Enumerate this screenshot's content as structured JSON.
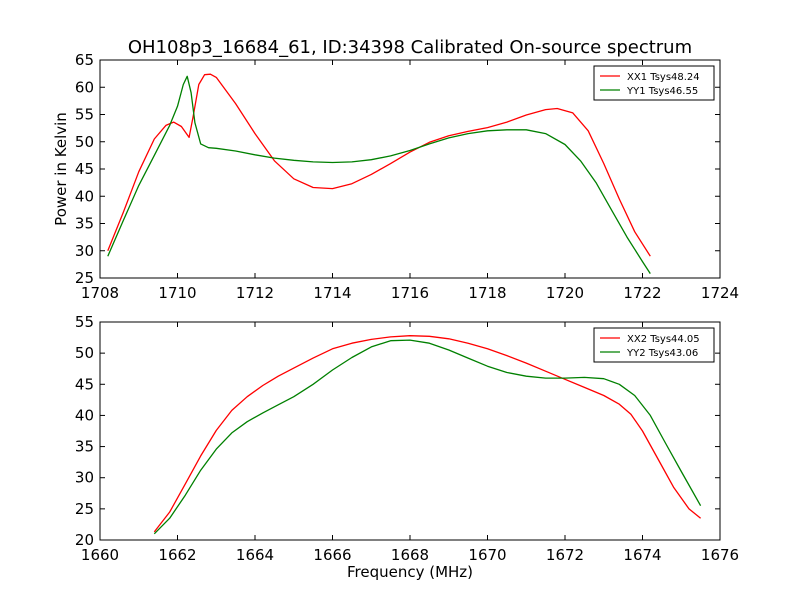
{
  "figure": {
    "title": "OH108p3_16684_61, ID:34398 Calibrated On-source spectrum"
  },
  "colors": {
    "series_red": "#ff0000",
    "series_green": "#008000",
    "frame": "#000000",
    "background": "#ffffff"
  },
  "chart_data": [
    {
      "type": "line",
      "title": "OH108p3_16684_61, ID:34398 Calibrated On-source spectrum",
      "xlabel": "",
      "ylabel": "Power in Kelvin",
      "xlim": [
        1708,
        1724
      ],
      "ylim": [
        25,
        65
      ],
      "xticks": [
        "1708",
        "1710",
        "1712",
        "1714",
        "1716",
        "1718",
        "1720",
        "1722",
        "1724"
      ],
      "yticks": [
        "25",
        "30",
        "35",
        "40",
        "45",
        "50",
        "55",
        "60",
        "65"
      ],
      "grid": false,
      "legend_position": "top-right",
      "series": [
        {
          "name": "XX1 Tsys48.24",
          "color": "#ff0000",
          "x": [
            1708.2,
            1708.6,
            1709.0,
            1709.4,
            1709.7,
            1709.9,
            1710.1,
            1710.3,
            1710.4,
            1710.55,
            1710.7,
            1710.85,
            1711.0,
            1711.5,
            1712.0,
            1712.5,
            1713.0,
            1713.5,
            1714.0,
            1714.5,
            1715.0,
            1715.5,
            1716.0,
            1716.5,
            1717.0,
            1717.5,
            1718.0,
            1718.5,
            1719.0,
            1719.5,
            1719.8,
            1720.2,
            1720.6,
            1721.0,
            1721.4,
            1721.8,
            1722.2
          ],
          "y": [
            30.0,
            37.0,
            44.5,
            50.5,
            53.0,
            53.6,
            52.8,
            50.8,
            54.5,
            60.5,
            62.3,
            62.4,
            61.8,
            57.0,
            51.5,
            46.5,
            43.2,
            41.6,
            41.4,
            42.3,
            44.0,
            46.0,
            48.1,
            49.9,
            51.1,
            51.9,
            52.6,
            53.6,
            54.9,
            55.9,
            56.1,
            55.3,
            52.0,
            46.0,
            39.5,
            33.5,
            29.0
          ]
        },
        {
          "name": "YY1 Tsys46.55",
          "color": "#008000",
          "x": [
            1708.2,
            1708.6,
            1709.0,
            1709.4,
            1709.8,
            1710.0,
            1710.15,
            1710.25,
            1710.35,
            1710.45,
            1710.6,
            1710.8,
            1711.0,
            1711.5,
            1712.0,
            1712.5,
            1713.0,
            1713.5,
            1714.0,
            1714.5,
            1715.0,
            1715.5,
            1716.0,
            1716.5,
            1717.0,
            1717.5,
            1718.0,
            1718.5,
            1719.0,
            1719.5,
            1720.0,
            1720.4,
            1720.8,
            1721.2,
            1721.6,
            1722.0,
            1722.2
          ],
          "y": [
            29.0,
            35.5,
            42.0,
            47.5,
            53.0,
            56.5,
            60.5,
            62.0,
            59.0,
            53.5,
            49.6,
            48.9,
            48.8,
            48.3,
            47.6,
            47.0,
            46.6,
            46.3,
            46.2,
            46.3,
            46.7,
            47.4,
            48.4,
            49.6,
            50.7,
            51.5,
            52.0,
            52.2,
            52.2,
            51.5,
            49.5,
            46.5,
            42.5,
            37.5,
            32.5,
            28.0,
            25.8
          ]
        }
      ]
    },
    {
      "type": "line",
      "title": "",
      "xlabel": "Frequency (MHz)",
      "ylabel": "",
      "xlim": [
        1660,
        1676
      ],
      "ylim": [
        20,
        55
      ],
      "xticks": [
        "1660",
        "1662",
        "1664",
        "1666",
        "1668",
        "1670",
        "1672",
        "1674",
        "1676"
      ],
      "yticks": [
        "20",
        "25",
        "30",
        "35",
        "40",
        "45",
        "50",
        "55"
      ],
      "grid": false,
      "legend_position": "top-right",
      "series": [
        {
          "name": "XX2 Tsys44.05",
          "color": "#ff0000",
          "x": [
            1661.4,
            1661.8,
            1662.2,
            1662.6,
            1663.0,
            1663.4,
            1663.8,
            1664.2,
            1664.6,
            1665.0,
            1665.5,
            1666.0,
            1666.5,
            1667.0,
            1667.5,
            1668.0,
            1668.5,
            1669.0,
            1669.5,
            1670.0,
            1670.5,
            1671.0,
            1671.5,
            1672.0,
            1672.5,
            1673.0,
            1673.4,
            1673.7,
            1674.0,
            1674.4,
            1674.8,
            1675.2,
            1675.5
          ],
          "y": [
            21.3,
            24.5,
            29.0,
            33.5,
            37.6,
            40.8,
            43.0,
            44.8,
            46.3,
            47.6,
            49.2,
            50.7,
            51.6,
            52.2,
            52.6,
            52.8,
            52.7,
            52.3,
            51.6,
            50.7,
            49.6,
            48.4,
            47.1,
            45.8,
            44.5,
            43.2,
            41.8,
            40.2,
            37.5,
            33.0,
            28.5,
            25.0,
            23.5
          ]
        },
        {
          "name": "YY2 Tsys43.06",
          "color": "#008000",
          "x": [
            1661.4,
            1661.8,
            1662.2,
            1662.6,
            1663.0,
            1663.4,
            1663.8,
            1664.2,
            1664.6,
            1665.0,
            1665.5,
            1666.0,
            1666.5,
            1667.0,
            1667.5,
            1668.0,
            1668.5,
            1669.0,
            1669.5,
            1670.0,
            1670.5,
            1671.0,
            1671.5,
            1672.0,
            1672.5,
            1673.0,
            1673.4,
            1673.8,
            1674.2,
            1674.6,
            1675.0,
            1675.5
          ],
          "y": [
            21.0,
            23.5,
            27.2,
            31.2,
            34.6,
            37.2,
            39.0,
            40.4,
            41.7,
            43.0,
            45.0,
            47.3,
            49.3,
            51.0,
            52.0,
            52.1,
            51.6,
            50.5,
            49.2,
            47.9,
            46.9,
            46.3,
            46.0,
            46.0,
            46.1,
            45.9,
            45.0,
            43.2,
            40.0,
            35.5,
            31.0,
            25.5
          ]
        }
      ]
    }
  ]
}
